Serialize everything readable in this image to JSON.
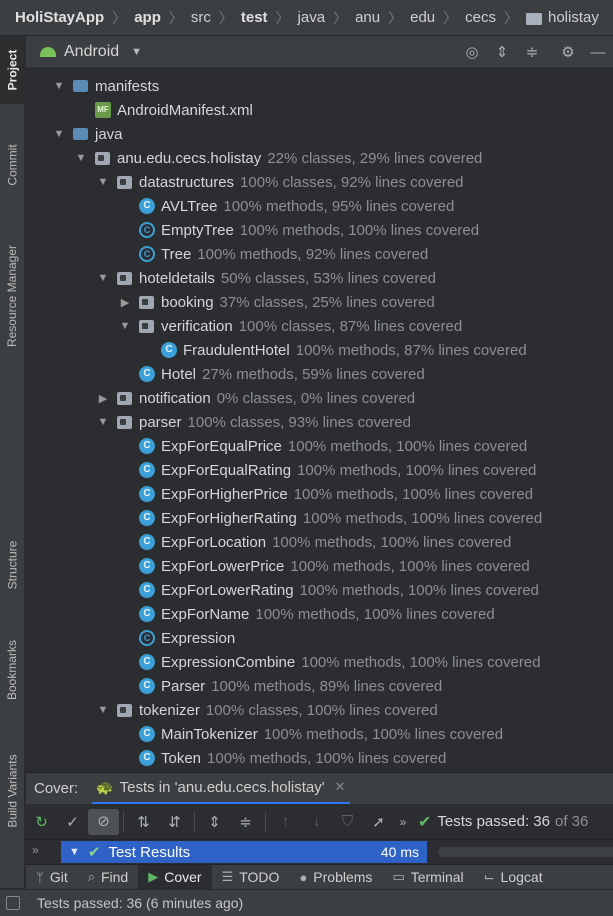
{
  "breadcrumb": [
    {
      "label": "HoliStayApp",
      "bold": true
    },
    {
      "label": "app",
      "bold": true
    },
    {
      "label": "src",
      "bold": false
    },
    {
      "label": "test",
      "bold": true
    },
    {
      "label": "java",
      "bold": false
    },
    {
      "label": "anu",
      "bold": false
    },
    {
      "label": "edu",
      "bold": false
    },
    {
      "label": "cecs",
      "bold": false
    },
    {
      "label": "holistay",
      "bold": false,
      "icon": "folder-icon"
    }
  ],
  "sidebar_tabs": [
    "Project",
    "Commit",
    "Resource Manager",
    "Structure",
    "Bookmarks",
    "Build Variants"
  ],
  "project_header": {
    "view": "Android"
  },
  "tree": [
    {
      "indent": 1,
      "arrow": "down",
      "icon": "folder",
      "name": "manifests",
      "cov": ""
    },
    {
      "indent": 2,
      "arrow": "",
      "icon": "manifest",
      "name": "AndroidManifest.xml",
      "cov": ""
    },
    {
      "indent": 1,
      "arrow": "down",
      "icon": "folder",
      "name": "java",
      "cov": ""
    },
    {
      "indent": 2,
      "arrow": "down",
      "icon": "package",
      "name": "anu.edu.cecs.holistay",
      "cov": "22% classes, 29% lines covered"
    },
    {
      "indent": 3,
      "arrow": "down",
      "icon": "package",
      "name": "datastructures",
      "cov": "100% classes, 92% lines covered"
    },
    {
      "indent": 4,
      "arrow": "",
      "icon": "class",
      "name": "AVLTree",
      "cov": "100% methods, 95% lines covered"
    },
    {
      "indent": 4,
      "arrow": "",
      "icon": "iface",
      "name": "EmptyTree",
      "cov": "100% methods, 100% lines covered"
    },
    {
      "indent": 4,
      "arrow": "",
      "icon": "iface",
      "name": "Tree",
      "cov": "100% methods, 92% lines covered"
    },
    {
      "indent": 3,
      "arrow": "down",
      "icon": "package",
      "name": "hoteldetails",
      "cov": "50% classes, 53% lines covered"
    },
    {
      "indent": 4,
      "arrow": "right",
      "icon": "package",
      "name": "booking",
      "cov": "37% classes, 25% lines covered"
    },
    {
      "indent": 4,
      "arrow": "down",
      "icon": "package",
      "name": "verification",
      "cov": "100% classes, 87% lines covered"
    },
    {
      "indent": 5,
      "arrow": "",
      "icon": "class",
      "name": "FraudulentHotel",
      "cov": "100% methods, 87% lines covered"
    },
    {
      "indent": 4,
      "arrow": "",
      "icon": "class",
      "name": "Hotel",
      "cov": "27% methods, 59% lines covered"
    },
    {
      "indent": 3,
      "arrow": "right",
      "icon": "package",
      "name": "notification",
      "cov": "0% classes, 0% lines covered"
    },
    {
      "indent": 3,
      "arrow": "down",
      "icon": "package",
      "name": "parser",
      "cov": "100% classes, 93% lines covered"
    },
    {
      "indent": 4,
      "arrow": "",
      "icon": "class",
      "name": "ExpForEqualPrice",
      "cov": "100% methods, 100% lines covered"
    },
    {
      "indent": 4,
      "arrow": "",
      "icon": "class",
      "name": "ExpForEqualRating",
      "cov": "100% methods, 100% lines covered"
    },
    {
      "indent": 4,
      "arrow": "",
      "icon": "class",
      "name": "ExpForHigherPrice",
      "cov": "100% methods, 100% lines covered"
    },
    {
      "indent": 4,
      "arrow": "",
      "icon": "class",
      "name": "ExpForHigherRating",
      "cov": "100% methods, 100% lines covered"
    },
    {
      "indent": 4,
      "arrow": "",
      "icon": "class",
      "name": "ExpForLocation",
      "cov": "100% methods, 100% lines covered"
    },
    {
      "indent": 4,
      "arrow": "",
      "icon": "class",
      "name": "ExpForLowerPrice",
      "cov": "100% methods, 100% lines covered"
    },
    {
      "indent": 4,
      "arrow": "",
      "icon": "class",
      "name": "ExpForLowerRating",
      "cov": "100% methods, 100% lines covered"
    },
    {
      "indent": 4,
      "arrow": "",
      "icon": "class",
      "name": "ExpForName",
      "cov": "100% methods, 100% lines covered"
    },
    {
      "indent": 4,
      "arrow": "",
      "icon": "iface",
      "name": "Expression",
      "cov": ""
    },
    {
      "indent": 4,
      "arrow": "",
      "icon": "class",
      "name": "ExpressionCombine",
      "cov": "100% methods, 100% lines covered"
    },
    {
      "indent": 4,
      "arrow": "",
      "icon": "class",
      "name": "Parser",
      "cov": "100% methods, 89% lines covered"
    },
    {
      "indent": 3,
      "arrow": "down",
      "icon": "package",
      "name": "tokenizer",
      "cov": "100% classes, 100% lines covered"
    },
    {
      "indent": 4,
      "arrow": "",
      "icon": "class",
      "name": "MainTokenizer",
      "cov": "100% methods, 100% lines covered"
    },
    {
      "indent": 4,
      "arrow": "",
      "icon": "class",
      "name": "Token",
      "cov": "100% methods, 100% lines covered"
    }
  ],
  "tool_window": {
    "title": "Cover:",
    "tab_label": "Tests in 'anu.edu.cecs.holistay'",
    "passed_label": "Tests passed: 36",
    "passed_of": "of 36"
  },
  "results": {
    "label": "Test Results",
    "time": "40 ms"
  },
  "bottom_tabs": [
    {
      "label": "Git",
      "icon": "git-branch-icon",
      "glyph": "ᛘ",
      "active": false
    },
    {
      "label": "Find",
      "icon": "search-icon",
      "glyph": "⌕",
      "active": false
    },
    {
      "label": "Cover",
      "icon": "coverage-icon",
      "glyph": "▶",
      "active": true
    },
    {
      "label": "TODO",
      "icon": "list-icon",
      "glyph": "☰",
      "active": false
    },
    {
      "label": "Problems",
      "icon": "warning-icon",
      "glyph": "●",
      "active": false
    },
    {
      "label": "Terminal",
      "icon": "terminal-icon",
      "glyph": "▭",
      "active": false
    },
    {
      "label": "Logcat",
      "icon": "logcat-icon",
      "glyph": "⌙",
      "active": false
    }
  ],
  "status": {
    "text": "Tests passed: 36 (6 minutes ago)"
  },
  "colors": {
    "accent": "#3574f0",
    "selection": "#2e62c6",
    "success": "#5fb865",
    "class_icon": "#3aa0d7"
  }
}
